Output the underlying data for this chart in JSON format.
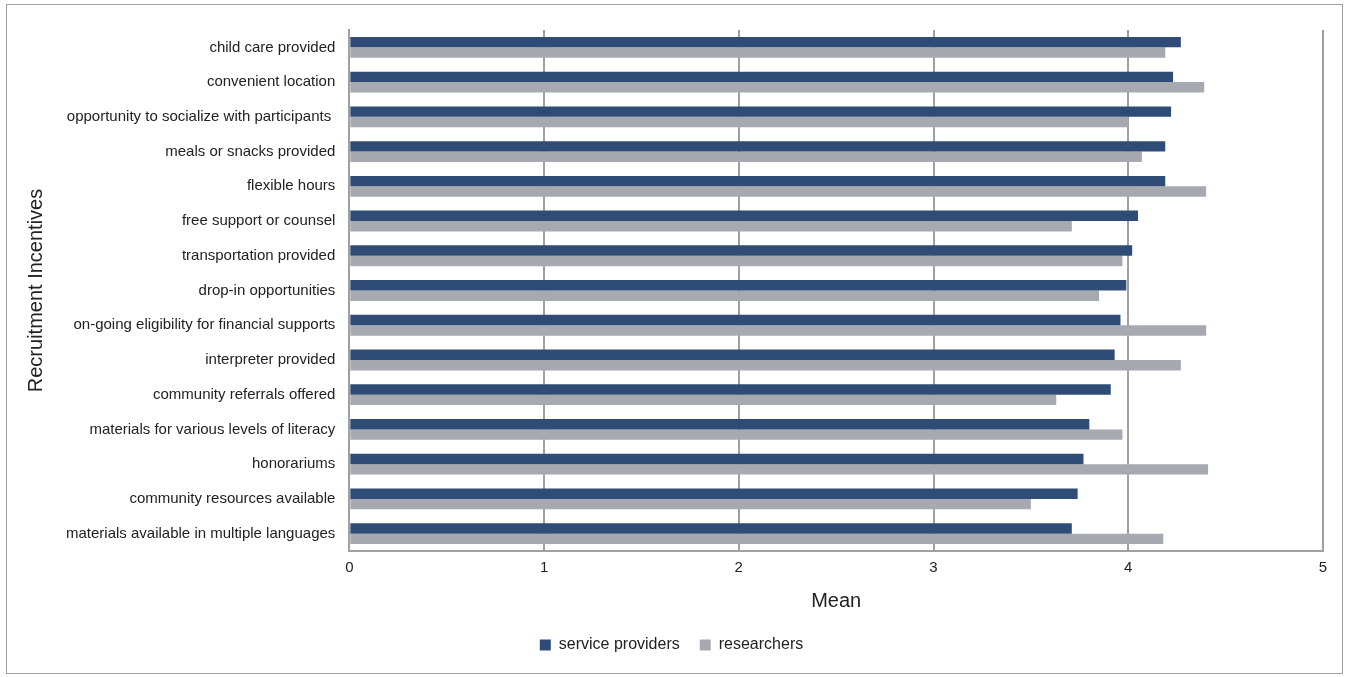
{
  "chart_data": {
    "type": "bar",
    "orientation": "horizontal",
    "xlabel": "Mean",
    "ylabel": "Recruitment Incentives",
    "categories": [
      "child care provided",
      "convenient location",
      "opportunity to socialize with participants ",
      "meals or snacks provided",
      "flexible hours",
      "free support or counsel",
      "transportation provided",
      "drop-in opportunities",
      "on-going eligibility for financial supports",
      "interpreter provided",
      "community referrals offered",
      "materials for various levels of literacy",
      "honorariums",
      "community resources available",
      "materials available in multiple languages"
    ],
    "series": [
      {
        "name": "service providers",
        "color": "#2e4c75",
        "values": [
          4.27,
          4.23,
          4.22,
          4.19,
          4.19,
          4.05,
          4.02,
          3.99,
          3.96,
          3.93,
          3.91,
          3.8,
          3.77,
          3.74,
          3.71
        ]
      },
      {
        "name": "researchers",
        "color": "#a6a9b0",
        "values": [
          4.19,
          4.39,
          4.0,
          4.07,
          4.4,
          3.71,
          3.97,
          3.85,
          4.4,
          4.27,
          3.63,
          3.97,
          4.41,
          3.5,
          4.18
        ]
      }
    ],
    "xlim": [
      0,
      5
    ],
    "xticks": [
      0,
      1,
      2,
      3,
      4,
      5
    ],
    "grid": "x",
    "legend": "bottom"
  }
}
